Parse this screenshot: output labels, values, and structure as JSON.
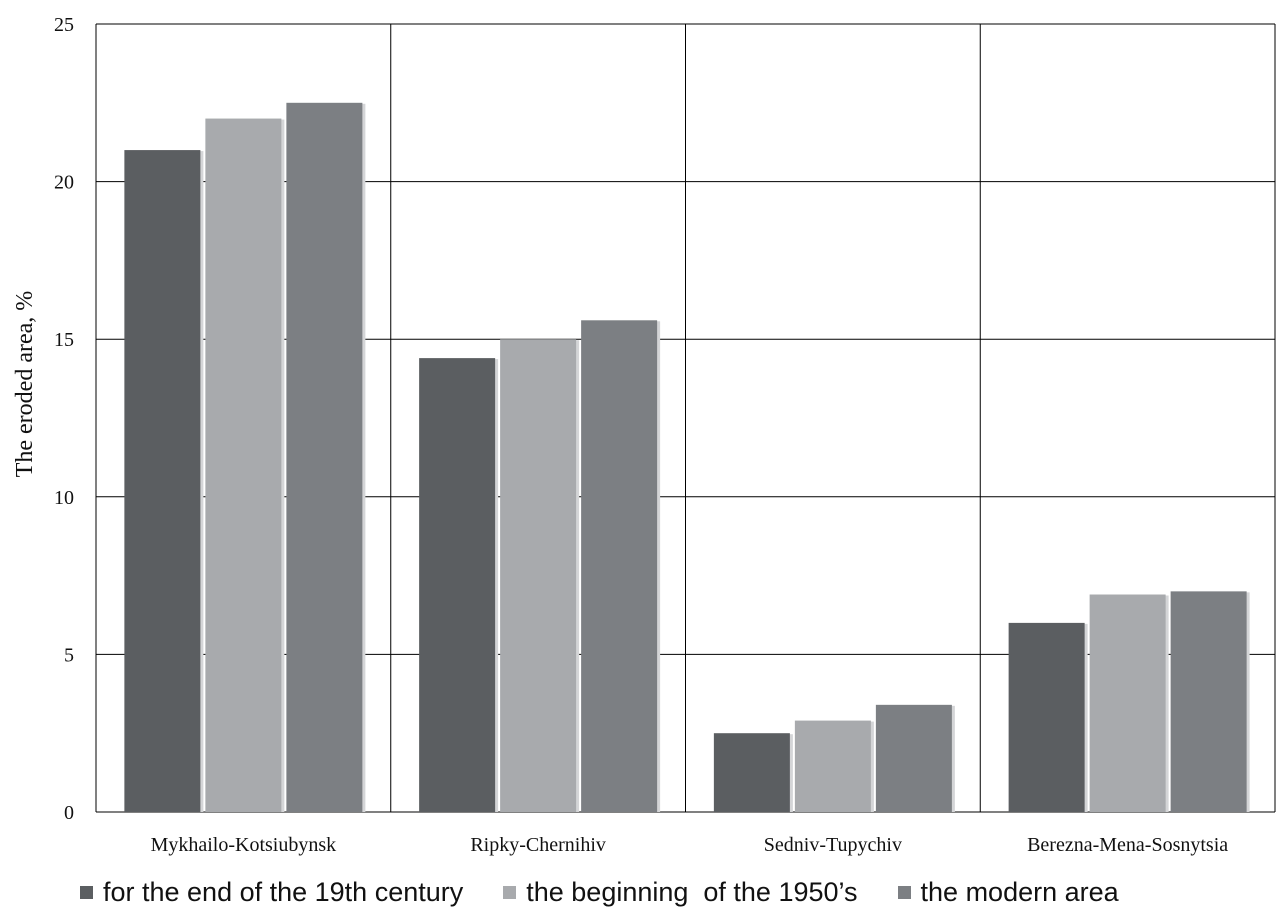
{
  "chart_data": {
    "type": "bar",
    "title": "",
    "xlabel": "",
    "ylabel": "The eroded area, %",
    "ylim": [
      0,
      25
    ],
    "yticks": [
      0,
      5,
      10,
      15,
      20,
      25
    ],
    "grid": true,
    "legend_position": "bottom",
    "categories": [
      "Mykhailo-Kotsiubynsk",
      "Ripky-Chernihiv",
      "Sedniv-Tupychiv",
      "Berezna-Mena-Sosnytsia"
    ],
    "series": [
      {
        "name": "for the end of the 19th century",
        "color": "#5b5e61",
        "values": [
          21.0,
          14.4,
          2.5,
          6.0
        ]
      },
      {
        "name": "the beginning  of the 1950’s",
        "color": "#a8aaad",
        "values": [
          22.0,
          15.0,
          2.9,
          6.9
        ]
      },
      {
        "name": "the modern area",
        "color": "#7c7f83",
        "values": [
          22.5,
          15.6,
          3.4,
          7.0
        ]
      }
    ]
  }
}
